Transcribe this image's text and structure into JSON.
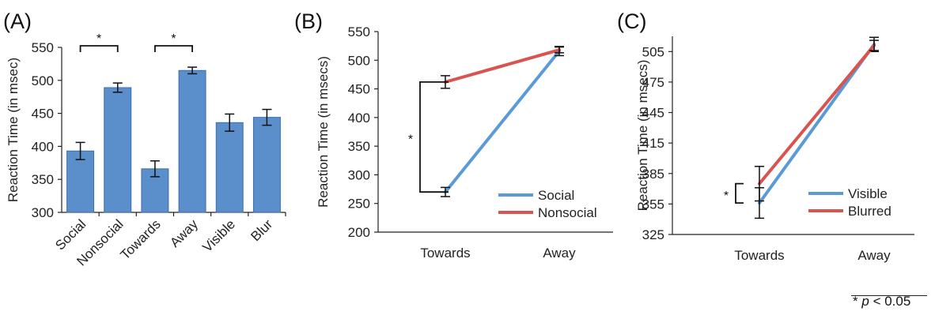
{
  "colors": {
    "bar": "#5b8fcc",
    "bar_edge": "#3b6fa8",
    "social_visible": "#5b9bd5",
    "nonsocial_blurred": "#d9534f",
    "axis": "#222222"
  },
  "chart_data": [
    {
      "panel": "(A)",
      "type": "bar",
      "ylabel": "Reaction Time (in msec)",
      "ylim": [
        300,
        550
      ],
      "yticks": [
        "300",
        "350",
        "400",
        "450",
        "500",
        "550"
      ],
      "categories": [
        "Social",
        "Nonsocial",
        "Towards",
        "Away",
        "Visible",
        "Blur"
      ],
      "values": [
        393,
        489,
        366,
        515,
        436,
        444
      ],
      "errors": [
        13,
        7,
        12,
        5,
        13,
        12
      ],
      "significance": [
        {
          "from": 0,
          "to": 1,
          "label": "*"
        },
        {
          "from": 2,
          "to": 3,
          "label": "*"
        }
      ]
    },
    {
      "panel": "(B)",
      "type": "line",
      "ylabel": "Reaction Time (in msecs)",
      "ylim": [
        200,
        550
      ],
      "yticks": [
        "200",
        "250",
        "300",
        "350",
        "400",
        "450",
        "500",
        "550"
      ],
      "categories": [
        "Towards",
        "Away"
      ],
      "series": [
        {
          "name": "Social",
          "values": [
            270,
            516
          ],
          "errors": [
            8,
            8
          ]
        },
        {
          "name": "Nonsocial",
          "values": [
            462,
            518
          ],
          "errors": [
            11,
            5
          ]
        }
      ],
      "significance": {
        "label": "*"
      }
    },
    {
      "panel": "(C)",
      "type": "line",
      "ylabel": "Reaction Time (in msecs)",
      "ylim": [
        325,
        520
      ],
      "yticks": [
        "325",
        "355",
        "385",
        "415",
        "445",
        "475",
        "505"
      ],
      "categories": [
        "Towards",
        "Away"
      ],
      "series": [
        {
          "name": "Visible",
          "values": [
            356,
            512
          ],
          "errors": [
            15,
            7
          ]
        },
        {
          "name": "Blurred",
          "values": [
            375,
            511
          ],
          "errors": [
            17,
            5
          ]
        }
      ],
      "significance": {
        "label": "*"
      }
    }
  ],
  "footnote": {
    "star": "*",
    "p": "p",
    "rest": "< 0.05"
  }
}
